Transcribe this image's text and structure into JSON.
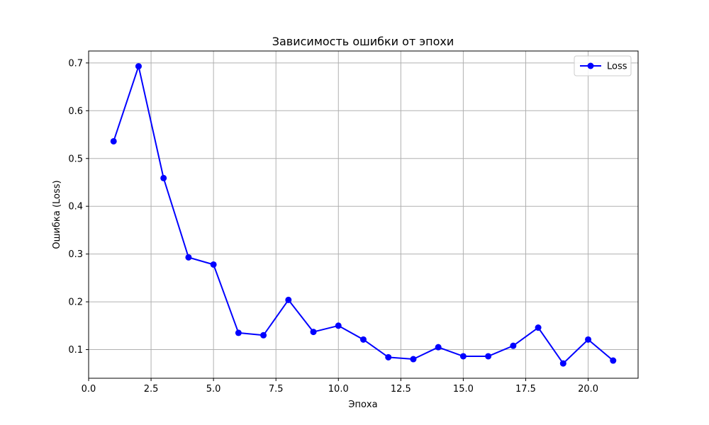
{
  "chart_data": {
    "type": "line",
    "title": "Зависимость ошибки от эпохи",
    "xlabel": "Эпоха",
    "ylabel": "Ошибка (Loss)",
    "xlim": [
      0.0,
      22.0
    ],
    "ylim": [
      0.04,
      0.725
    ],
    "x_ticks": [
      0.0,
      2.5,
      5.0,
      7.5,
      10.0,
      12.5,
      15.0,
      17.5,
      20.0
    ],
    "x_tick_labels": [
      "0.0",
      "2.5",
      "5.0",
      "7.5",
      "10.0",
      "12.5",
      "15.0",
      "17.5",
      "20.0"
    ],
    "y_ticks": [
      0.1,
      0.2,
      0.3,
      0.4,
      0.5,
      0.6,
      0.7
    ],
    "y_tick_labels": [
      "0.1",
      "0.2",
      "0.3",
      "0.4",
      "0.5",
      "0.6",
      "0.7"
    ],
    "grid": true,
    "legend_position": "top-right",
    "series": [
      {
        "name": "Loss",
        "color": "#0000ff",
        "marker": "circle",
        "x": [
          1,
          2,
          3,
          4,
          5,
          6,
          7,
          8,
          9,
          10,
          11,
          12,
          13,
          14,
          15,
          16,
          17,
          18,
          19,
          20,
          21
        ],
        "y": [
          0.536,
          0.693,
          0.459,
          0.293,
          0.278,
          0.135,
          0.13,
          0.204,
          0.137,
          0.15,
          0.121,
          0.084,
          0.08,
          0.105,
          0.086,
          0.086,
          0.108,
          0.146,
          0.071,
          0.121,
          0.077
        ]
      }
    ]
  }
}
